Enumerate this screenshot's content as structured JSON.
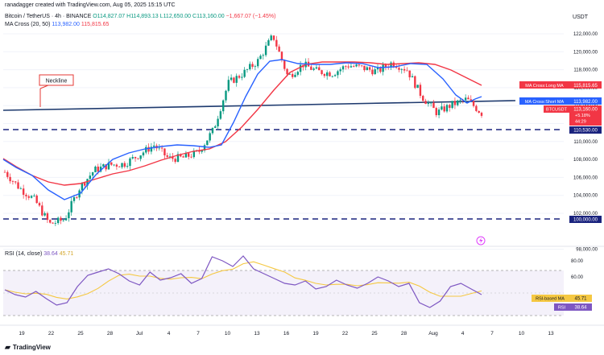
{
  "credit": "ranadagger created with TradingView.com, Aug 05, 2025 15:15 UTC",
  "header": {
    "pair": "Bitcoin / TetherUS · 4h · BINANCE",
    "o": "O",
    "o_val": "114,827.07",
    "h": "H",
    "h_val": "114,893.13",
    "l": "L",
    "l_val": "112,650.00",
    "c": "C",
    "c_val": "113,160.00",
    "chg": "−1,667.07 (−1.45%)",
    "ma_label": "MA Cross (20, 50)",
    "ma_short": "113,982.00",
    "ma_long": "115,815.65"
  },
  "currency": "USDT",
  "rsi_header": {
    "label": "RSI (14, close)",
    "rsi": "38.64",
    "rsi_ma": "45.71"
  },
  "price_axis": {
    "ticks": [
      "122,000.00",
      "120,000.00",
      "118,000.00",
      "116,000.00",
      "114,000.00",
      "112,000.00",
      "110,000.00",
      "108,000.00",
      "106,000.00",
      "104,000.00",
      "102,000.00",
      "98,000.00"
    ]
  },
  "rsi_axis": {
    "ticks": [
      "80.00",
      "60.00",
      "20.00"
    ]
  },
  "time_axis": {
    "ticks": [
      "19",
      "22",
      "25",
      "28",
      "Jul",
      "4",
      "7",
      "10",
      "13",
      "16",
      "19",
      "22",
      "25",
      "28",
      "Aug",
      "4",
      "7",
      "10",
      "13"
    ]
  },
  "price_labels": {
    "ma_long": "115,815.65",
    "ma_long_name": "MA Cross:Long MA",
    "ma_short": "113,982.00",
    "ma_short_name": "MA Cross:Short MA",
    "last": "113,160.00",
    "last_name": "BTCUSDT",
    "last_sub1": "+5.18%",
    "last_sub2": "44:29",
    "support1": "110,530.00",
    "support2": "100,000.00"
  },
  "rsi_labels": {
    "ma": "45.71",
    "ma_name": "RSI-based MA",
    "rsi": "38.64",
    "rsi_name": "RSI"
  },
  "annotation": "Neckline",
  "logo": "TradingView",
  "colors": {
    "up": "#089981",
    "down": "#f23645",
    "short_ma": "#2962ff",
    "long_ma": "#f23645",
    "support": "#1a237e",
    "neckline": "#1e3a6e",
    "rsi": "#7e57c2",
    "rsi_ma": "#f5c842"
  },
  "chart_data": {
    "type": "candlestick",
    "timeframe": "4h",
    "yrange": [
      97500,
      123000
    ],
    "support_levels": [
      110530,
      100000
    ],
    "neckline": {
      "from": {
        "date": "Jun 17",
        "price": 110000
      },
      "to": {
        "date": "Aug 05",
        "price": 111000
      }
    },
    "ma_short_last": 113982.0,
    "ma_long_last": 115815.65,
    "last_close": 113160.0,
    "close_path": [
      {
        "date": "Jun 17",
        "close": 106600
      },
      {
        "date": "Jun 19",
        "close": 104800
      },
      {
        "date": "Jun 21",
        "close": 103500
      },
      {
        "date": "Jun 22",
        "close": 100800
      },
      {
        "date": "Jun 23",
        "close": 101300
      },
      {
        "date": "Jun 24",
        "close": 104800
      },
      {
        "date": "Jun 26",
        "close": 106800
      },
      {
        "date": "Jun 28",
        "close": 107400
      },
      {
        "date": "Jun 30",
        "close": 107500
      },
      {
        "date": "Jul 02",
        "close": 108500
      },
      {
        "date": "Jul 03",
        "close": 109600
      },
      {
        "date": "Jul 05",
        "close": 108100
      },
      {
        "date": "Jul 07",
        "close": 108200
      },
      {
        "date": "Jul 09",
        "close": 108800
      },
      {
        "date": "Jul 10",
        "close": 111300
      },
      {
        "date": "Jul 11",
        "close": 116500
      },
      {
        "date": "Jul 12",
        "close": 117600
      },
      {
        "date": "Jul 13",
        "close": 119000
      },
      {
        "date": "Jul 14",
        "close": 121800
      },
      {
        "date": "Jul 15",
        "close": 117200
      },
      {
        "date": "Jul 16",
        "close": 118600
      },
      {
        "date": "Jul 18",
        "close": 117800
      },
      {
        "date": "Jul 20",
        "close": 117600
      },
      {
        "date": "Jul 22",
        "close": 118500
      },
      {
        "date": "Jul 24",
        "close": 118200
      },
      {
        "date": "Jul 26",
        "close": 117800
      },
      {
        "date": "Jul 28",
        "close": 118800
      },
      {
        "date": "Jul 30",
        "close": 118000
      },
      {
        "date": "Aug 01",
        "close": 115000
      },
      {
        "date": "Aug 02",
        "close": 113200
      },
      {
        "date": "Aug 03",
        "close": 114100
      },
      {
        "date": "Aug 04",
        "close": 114700
      },
      {
        "date": "Aug 05",
        "close": 113160
      }
    ],
    "rsi": {
      "yrange": [
        12,
        92
      ],
      "bands": [
        30,
        70
      ],
      "last": 38.64,
      "ma_last": 45.71,
      "values": [
        44,
        38,
        35,
        42,
        33,
        25,
        28,
        48,
        62,
        66,
        70,
        64,
        55,
        50,
        66,
        56,
        59,
        64,
        52,
        58,
        85,
        80,
        73,
        86,
        70,
        64,
        58,
        52,
        50,
        55,
        45,
        48,
        56,
        50,
        46,
        52,
        60,
        55,
        48,
        52,
        28,
        22,
        30,
        48,
        52,
        45,
        38
      ]
    }
  }
}
